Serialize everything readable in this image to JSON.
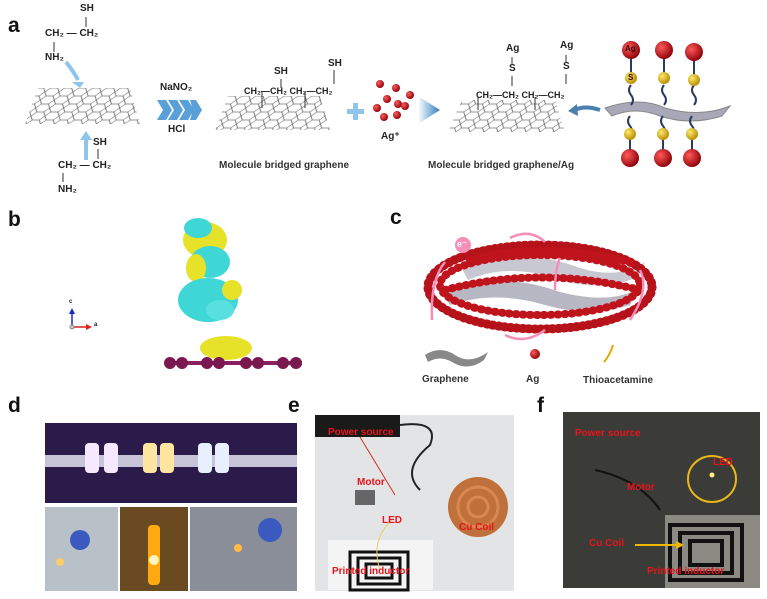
{
  "panels": {
    "a": {
      "label": "a",
      "molecule_top": {
        "sh": "SH",
        "chain": "CH₂ — CH₂",
        "nh2": "NH₂"
      },
      "molecule_bottom": {
        "sh": "SH",
        "chain": "CH₂ — CH₂",
        "nh2": "NH₂"
      },
      "reagent_top": "NaNO₂",
      "reagent_bottom": "HCl",
      "bridged": {
        "sh1": "SH",
        "sh2": "SH",
        "chain": "CH₂—CH₂ CH₂—CH₂",
        "caption": "Molecule bridged graphene"
      },
      "silver_ion": "Ag⁺",
      "bridged_ag": {
        "ag1": "Ag",
        "s1": "S",
        "ag2": "Ag",
        "s2": "S",
        "chain": "CH₂—CH₂ CH₂—CH₂",
        "caption": "Molecule bridged graphene/Ag"
      },
      "schematic": {
        "ag": "Ag",
        "s": "S"
      }
    },
    "b": {
      "label": "b",
      "axis_c": "c",
      "axis_a": "a"
    },
    "c": {
      "label": "c",
      "electron": "e⁻",
      "legend": [
        "Graphene",
        "Ag",
        "Thioacetamine"
      ]
    },
    "d": {
      "label": "d"
    },
    "e": {
      "label": "e",
      "annotations": {
        "power": "Power source",
        "motor": "Motor",
        "led": "LED",
        "coil": "Cu Coil",
        "inductor": "Printed inductor"
      }
    },
    "f": {
      "label": "f",
      "annotations": {
        "power": "Power source",
        "motor": "Motor",
        "led": "LED",
        "coil": "Cu Coil",
        "inductor": "Printed inductor"
      }
    }
  },
  "colors": {
    "silver": "#c0141c",
    "sulfur": "#e8c01c",
    "cyan": "#3fd6d6",
    "yellow": "#e6e22a",
    "arrow_blue": "#8fc4ec",
    "pink": "#f58fb8",
    "annotation_red": "#e8141c"
  }
}
